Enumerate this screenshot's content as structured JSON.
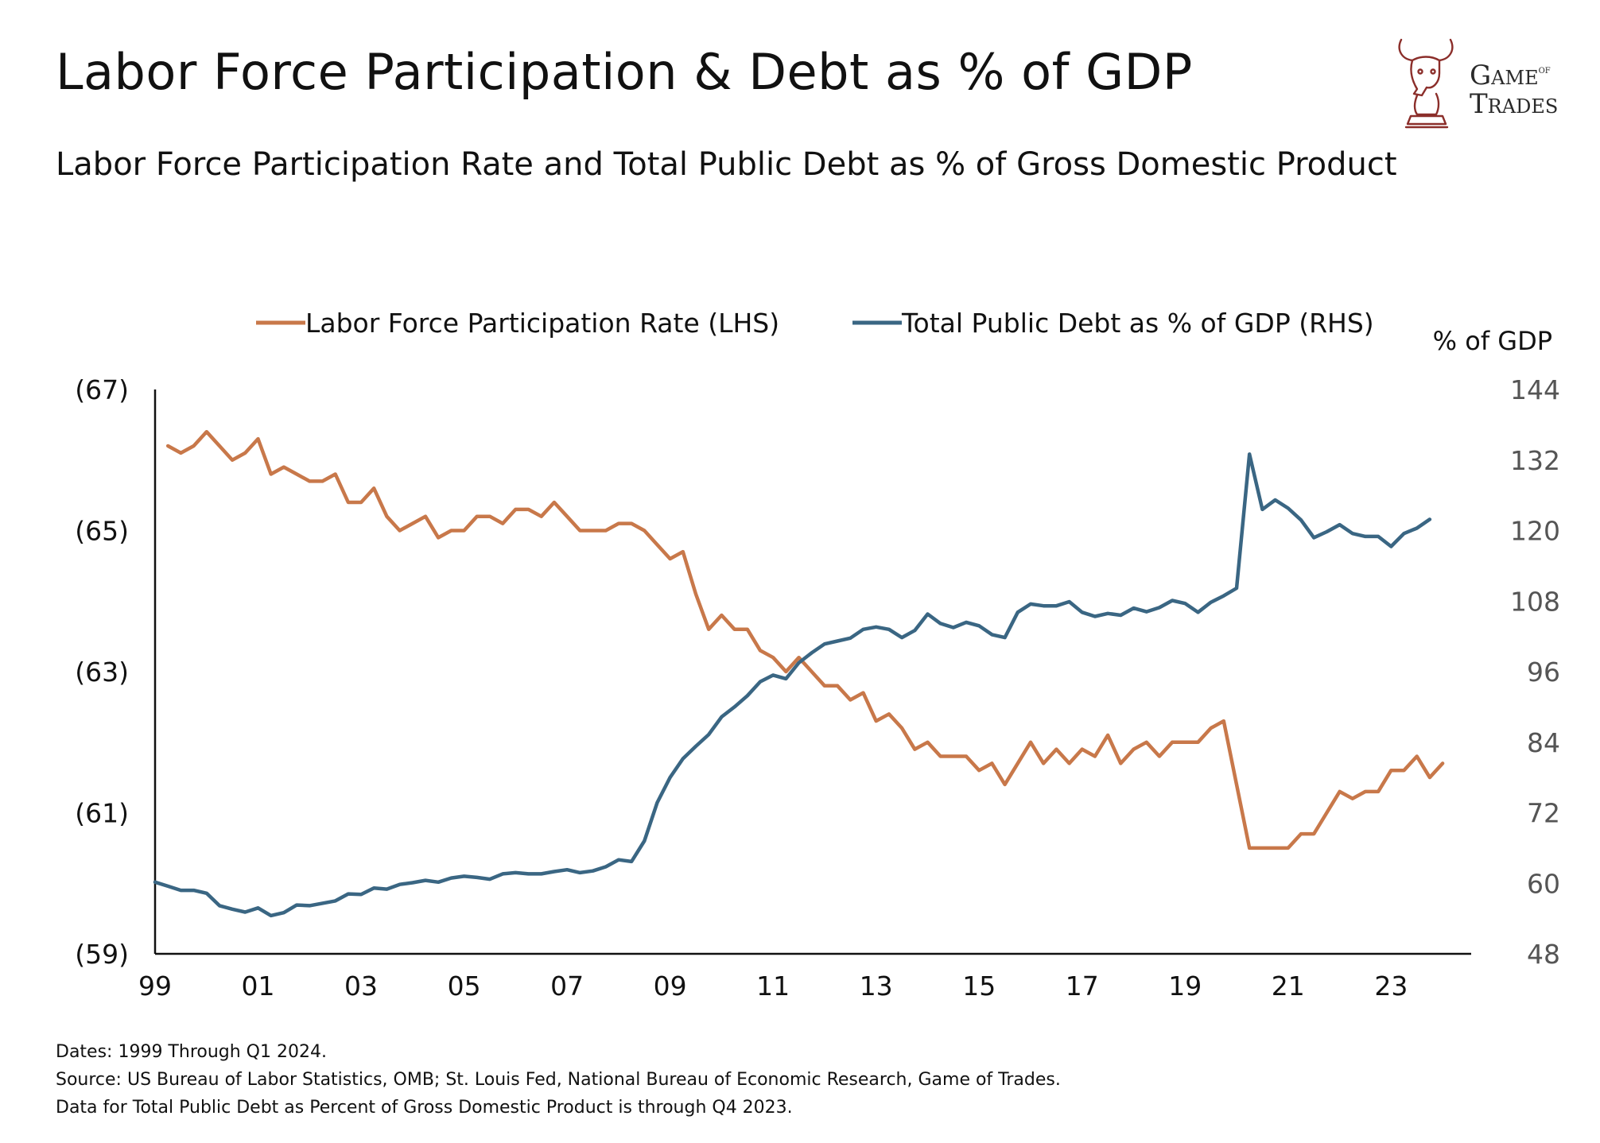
{
  "header": {
    "title": "Labor Force Participation & Debt as % of GDP",
    "subtitle": "Labor Force Participation Rate  and Total Public Debt as % of Gross Domestic Product"
  },
  "logo": {
    "line1": "Game",
    "line1_small": "of",
    "line2": "Trades",
    "icon": "bull-chess-knight-icon"
  },
  "footer": {
    "dates": "Dates: 1999 Through Q1 2024.",
    "source": "Source: US Bureau of Labor Statistics, OMB; St. Louis Fed, National Bureau of Economic Research, Game of Trades.",
    "note": "Data for Total Public Debt as Percent of Gross Domestic Product is through Q4 2023."
  },
  "colors": {
    "lfpr": "#C8784A",
    "debt": "#3A6683",
    "axis": "#111111",
    "right_ticks": "#555555"
  },
  "chart_data": {
    "type": "line",
    "right_axis_title": "% of GDP",
    "x_ticks": [
      "99",
      "01",
      "03",
      "05",
      "07",
      "09",
      "11",
      "13",
      "15",
      "17",
      "19",
      "21",
      "23"
    ],
    "x_tick_years": [
      1999,
      2001,
      2003,
      2005,
      2007,
      2009,
      2011,
      2013,
      2015,
      2017,
      2019,
      2021,
      2023
    ],
    "xlim": [
      1999,
      2024.4
    ],
    "left_axis": {
      "ylim": [
        59,
        67
      ],
      "ticks": [
        "(59)",
        "(61)",
        "(63)",
        "(65)",
        "(67)"
      ],
      "tick_values": [
        59,
        61,
        63,
        65,
        67
      ]
    },
    "right_axis": {
      "ylim": [
        48,
        144
      ],
      "ticks": [
        "48",
        "60",
        "72",
        "84",
        "96",
        "108",
        "120",
        "132",
        "144"
      ],
      "tick_values": [
        48,
        60,
        72,
        84,
        96,
        108,
        120,
        132,
        144
      ]
    },
    "grid": false,
    "legend_position": "top",
    "series": [
      {
        "name": "Labor Force Participation Rate (LHS)",
        "axis": "left",
        "x": [
          1999.25,
          1999.5,
          1999.75,
          2000,
          2000.25,
          2000.5,
          2000.75,
          2001,
          2001.25,
          2001.5,
          2001.75,
          2002,
          2002.25,
          2002.5,
          2002.75,
          2003,
          2003.25,
          2003.5,
          2003.75,
          2004,
          2004.25,
          2004.5,
          2004.75,
          2005,
          2005.25,
          2005.5,
          2005.75,
          2006,
          2006.25,
          2006.5,
          2006.75,
          2007,
          2007.25,
          2007.5,
          2007.75,
          2008,
          2008.25,
          2008.5,
          2008.75,
          2009,
          2009.25,
          2009.5,
          2009.75,
          2010,
          2010.25,
          2010.5,
          2010.75,
          2011,
          2011.25,
          2011.5,
          2011.75,
          2012,
          2012.25,
          2012.5,
          2012.75,
          2013,
          2013.25,
          2013.5,
          2013.75,
          2014,
          2014.25,
          2014.5,
          2014.75,
          2015,
          2015.25,
          2015.5,
          2015.75,
          2016,
          2016.25,
          2016.5,
          2016.75,
          2017,
          2017.25,
          2017.5,
          2017.75,
          2018,
          2018.25,
          2018.5,
          2018.75,
          2019,
          2019.25,
          2019.5,
          2019.75,
          2020,
          2020.25,
          2020.5,
          2020.75,
          2021,
          2021.25,
          2021.5,
          2021.75,
          2022,
          2022.25,
          2022.5,
          2022.75,
          2023,
          2023.25,
          2023.5,
          2023.75,
          2024
        ],
        "values": [
          66.2,
          66.1,
          66.2,
          66.4,
          66.2,
          66.0,
          66.1,
          66.3,
          65.8,
          65.9,
          65.8,
          65.7,
          65.7,
          65.8,
          65.4,
          65.4,
          65.6,
          65.2,
          65.0,
          65.1,
          65.2,
          64.9,
          65.0,
          65.0,
          65.2,
          65.2,
          65.1,
          65.3,
          65.3,
          65.2,
          65.4,
          65.2,
          65.0,
          65.0,
          65.0,
          65.1,
          65.1,
          65.0,
          64.8,
          64.6,
          64.7,
          64.1,
          63.6,
          63.8,
          63.6,
          63.6,
          63.3,
          63.2,
          63.0,
          63.2,
          63.0,
          62.8,
          62.8,
          62.6,
          62.7,
          62.3,
          62.4,
          62.2,
          61.9,
          62.0,
          61.8,
          61.8,
          61.8,
          61.6,
          61.7,
          61.4,
          61.7,
          62.0,
          61.7,
          61.9,
          61.7,
          61.9,
          61.8,
          62.1,
          61.7,
          61.9,
          62.0,
          61.8,
          62.0,
          62.0,
          62.0,
          62.2,
          62.3,
          61.4,
          60.5,
          60.5,
          60.5,
          60.5,
          60.7,
          60.7,
          61.0,
          61.3,
          61.2,
          61.3,
          61.3,
          61.6,
          61.6,
          61.8,
          61.5,
          61.7
        ]
      },
      {
        "name": "Total Public Debt as % of GDP (RHS)",
        "axis": "right",
        "x": [
          1999,
          1999.25,
          1999.5,
          1999.75,
          2000,
          2000.25,
          2000.5,
          2000.75,
          2001,
          2001.25,
          2001.5,
          2001.75,
          2002,
          2002.25,
          2002.5,
          2002.75,
          2003,
          2003.25,
          2003.5,
          2003.75,
          2004,
          2004.25,
          2004.5,
          2004.75,
          2005,
          2005.25,
          2005.5,
          2005.75,
          2006,
          2006.25,
          2006.5,
          2006.75,
          2007,
          2007.25,
          2007.5,
          2007.75,
          2008,
          2008.25,
          2008.5,
          2008.75,
          2009,
          2009.25,
          2009.5,
          2009.75,
          2010,
          2010.25,
          2010.5,
          2010.75,
          2011,
          2011.25,
          2011.5,
          2011.75,
          2012,
          2012.25,
          2012.5,
          2012.75,
          2013,
          2013.25,
          2013.5,
          2013.75,
          2014,
          2014.25,
          2014.5,
          2014.75,
          2015,
          2015.25,
          2015.5,
          2015.75,
          2016,
          2016.25,
          2016.5,
          2016.75,
          2017,
          2017.25,
          2017.5,
          2017.75,
          2018,
          2018.25,
          2018.5,
          2018.75,
          2019,
          2019.25,
          2019.5,
          2019.75,
          2020,
          2020.25,
          2020.5,
          2020.75,
          2021,
          2021.25,
          2021.5,
          2021.75,
          2022,
          2022.25,
          2022.5,
          2022.75,
          2023,
          2023.25,
          2023.5,
          2023.75
        ],
        "values": [
          60.2,
          59.5,
          58.8,
          58.8,
          58.3,
          56.2,
          55.6,
          55.1,
          55.8,
          54.5,
          55.0,
          56.3,
          56.2,
          56.6,
          57.0,
          58.2,
          58.1,
          59.2,
          59.0,
          59.8,
          60.1,
          60.5,
          60.2,
          60.9,
          61.2,
          61.0,
          60.7,
          61.6,
          61.8,
          61.6,
          61.6,
          62.0,
          62.3,
          61.8,
          62.1,
          62.8,
          64.0,
          63.7,
          67.2,
          73.7,
          78.0,
          81.2,
          83.3,
          85.3,
          88.3,
          90.0,
          91.9,
          94.3,
          95.4,
          94.8,
          97.5,
          99.2,
          100.7,
          101.2,
          101.7,
          103.2,
          103.6,
          103.2,
          101.8,
          103.0,
          105.8,
          104.2,
          103.5,
          104.4,
          103.8,
          102.3,
          101.8,
          106.1,
          107.5,
          107.2,
          107.2,
          107.9,
          106.1,
          105.4,
          105.9,
          105.6,
          106.8,
          106.2,
          106.9,
          108.1,
          107.6,
          106.1,
          107.8,
          108.9,
          110.2,
          133.0,
          123.6,
          125.2,
          123.8,
          121.8,
          118.8,
          119.8,
          121.0,
          119.5,
          119.0,
          119.0,
          117.3,
          119.5,
          120.4,
          121.9
        ]
      }
    ]
  }
}
